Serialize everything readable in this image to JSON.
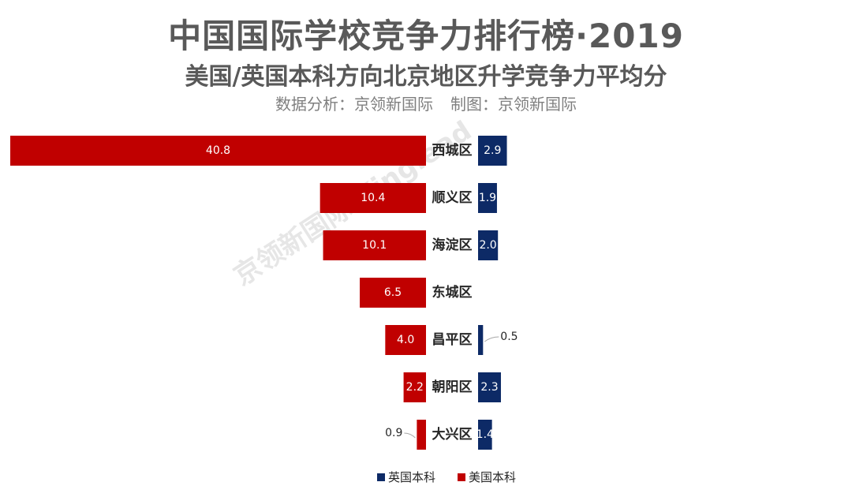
{
  "title": "中国国际学校竞争力排行榜·2019",
  "subtitle": "美国/英国本科方向北京地区升学竞争力平均分",
  "credit": {
    "analysis": "数据分析：京领新国际",
    "made_by": "制图：京领新国际"
  },
  "watermark": "京领新国际 Kinglead",
  "chart_data": {
    "type": "bar",
    "orientation": "horizontal-diverging",
    "categories": [
      "西城区",
      "顺义区",
      "海淀区",
      "东城区",
      "昌平区",
      "朝阳区",
      "大兴区"
    ],
    "series": [
      {
        "name": "英国本科",
        "color": "#0d2a66",
        "values": [
          2.9,
          1.9,
          2.0,
          null,
          0.5,
          2.3,
          1.4
        ],
        "side": "right"
      },
      {
        "name": "美国本科",
        "color": "#c00000",
        "values": [
          40.8,
          10.4,
          10.1,
          6.5,
          4.0,
          2.2,
          0.9
        ],
        "side": "left"
      }
    ],
    "legend_position": "bottom-center",
    "grid": false
  }
}
